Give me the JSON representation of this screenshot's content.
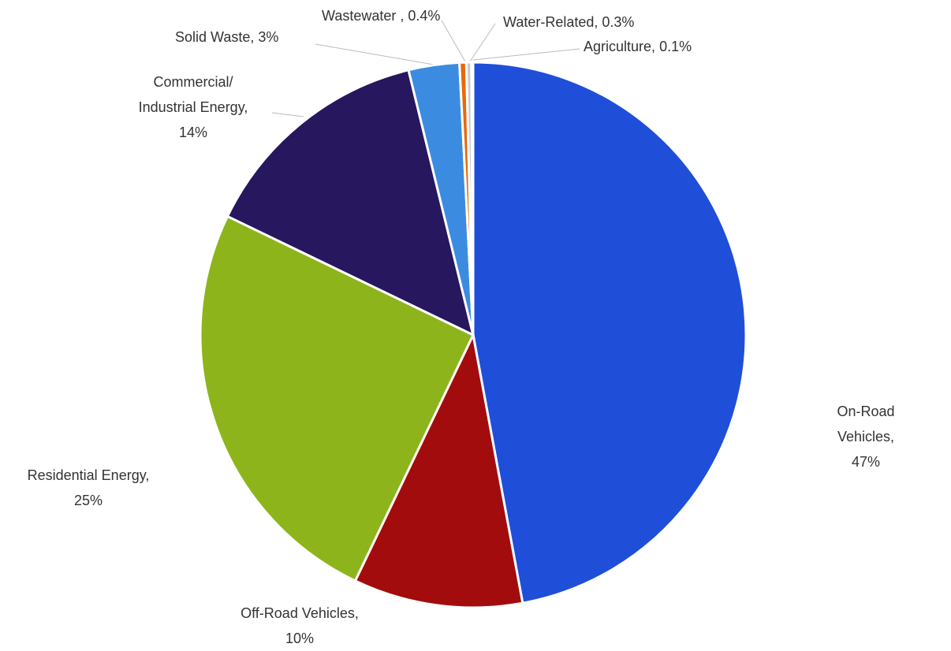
{
  "chart_data": {
    "type": "pie",
    "categories": [
      "On-Road Vehicles,",
      "Off-Road Vehicles,",
      "Residential Energy,",
      "Commercial/\nIndustrial Energy,",
      "Solid Waste,",
      "Wastewater ,",
      "Water-Related,",
      "Agriculture,"
    ],
    "values": [
      47,
      10,
      25,
      14,
      3,
      0.4,
      0.3,
      0.1
    ],
    "value_labels": [
      "47%",
      "10%",
      "25%",
      "14%",
      "3%",
      "0.4%",
      "0.3%",
      "0.1%"
    ],
    "colors": [
      "#1f4fd8",
      "#a30c0c",
      "#8db51b",
      "#26175f",
      "#3b8ce0",
      "#e8680e",
      "#c9c9c9",
      "#4a70d2"
    ]
  }
}
